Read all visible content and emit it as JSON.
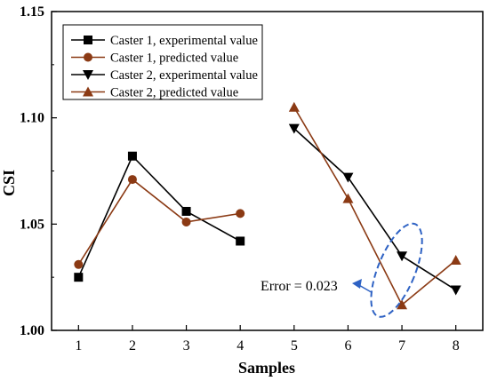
{
  "chart_data": {
    "type": "line",
    "xlabel": "Samples",
    "ylabel": "CSI",
    "xlim": [
      0.5,
      8.5
    ],
    "ylim": [
      1.0,
      1.15
    ],
    "x_ticks": [
      1,
      2,
      3,
      4,
      5,
      6,
      7,
      8
    ],
    "y_ticks": [
      "1.00",
      "1.05",
      "1.10",
      "1.15"
    ],
    "grid": false,
    "legend_position": "top-left",
    "series": [
      {
        "name": "Caster 1, experimental value",
        "color": "#000000",
        "marker": "square",
        "x": [
          1,
          2,
          3,
          4
        ],
        "values": [
          1.025,
          1.082,
          1.056,
          1.042
        ]
      },
      {
        "name": "Caster 1, predicted value",
        "color": "#8b3a14",
        "marker": "circle",
        "x": [
          1,
          2,
          3,
          4
        ],
        "values": [
          1.031,
          1.071,
          1.051,
          1.055
        ]
      },
      {
        "name": "Caster 2, experimental value",
        "color": "#000000",
        "marker": "triangle-down",
        "x": [
          5,
          6,
          7,
          8
        ],
        "values": [
          1.095,
          1.072,
          1.035,
          1.019
        ]
      },
      {
        "name": "Caster 2, predicted value",
        "color": "#8b3a14",
        "marker": "triangle-up",
        "x": [
          5,
          6,
          7,
          8
        ],
        "values": [
          1.105,
          1.062,
          1.012,
          1.033
        ]
      }
    ],
    "annotation": {
      "text": "Error = 0.023",
      "target_x": 7,
      "color": "#2e62c4"
    }
  }
}
